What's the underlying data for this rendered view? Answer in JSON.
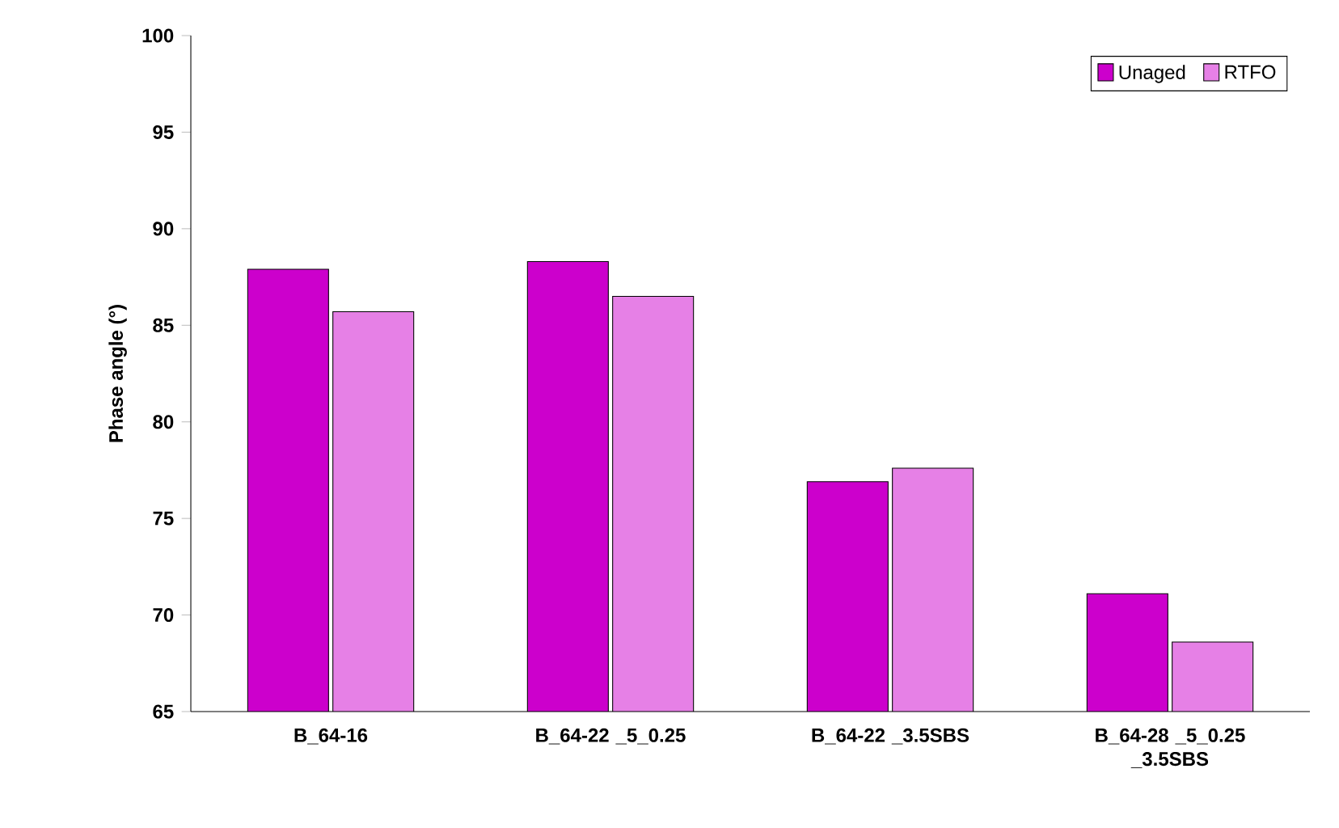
{
  "chart_data": {
    "type": "bar",
    "ylabel": "Phase angle (°)",
    "categories": [
      "B_64-16",
      "B_64-22 _5_0.25",
      "B_64-22 _3.5SBS",
      "B_64-28 _5_0.25 _3.5SBS"
    ],
    "series": [
      {
        "name": "Unaged",
        "color": "#cc00cc",
        "values": [
          87.9,
          88.3,
          76.9,
          71.1
        ]
      },
      {
        "name": "RTFO",
        "color": "#e680e6",
        "values": [
          85.7,
          86.5,
          77.6,
          68.6
        ]
      }
    ],
    "ylim": [
      65,
      100
    ],
    "yticks": [
      65,
      70,
      75,
      80,
      85,
      90,
      95,
      100
    ],
    "legend": "top right"
  }
}
